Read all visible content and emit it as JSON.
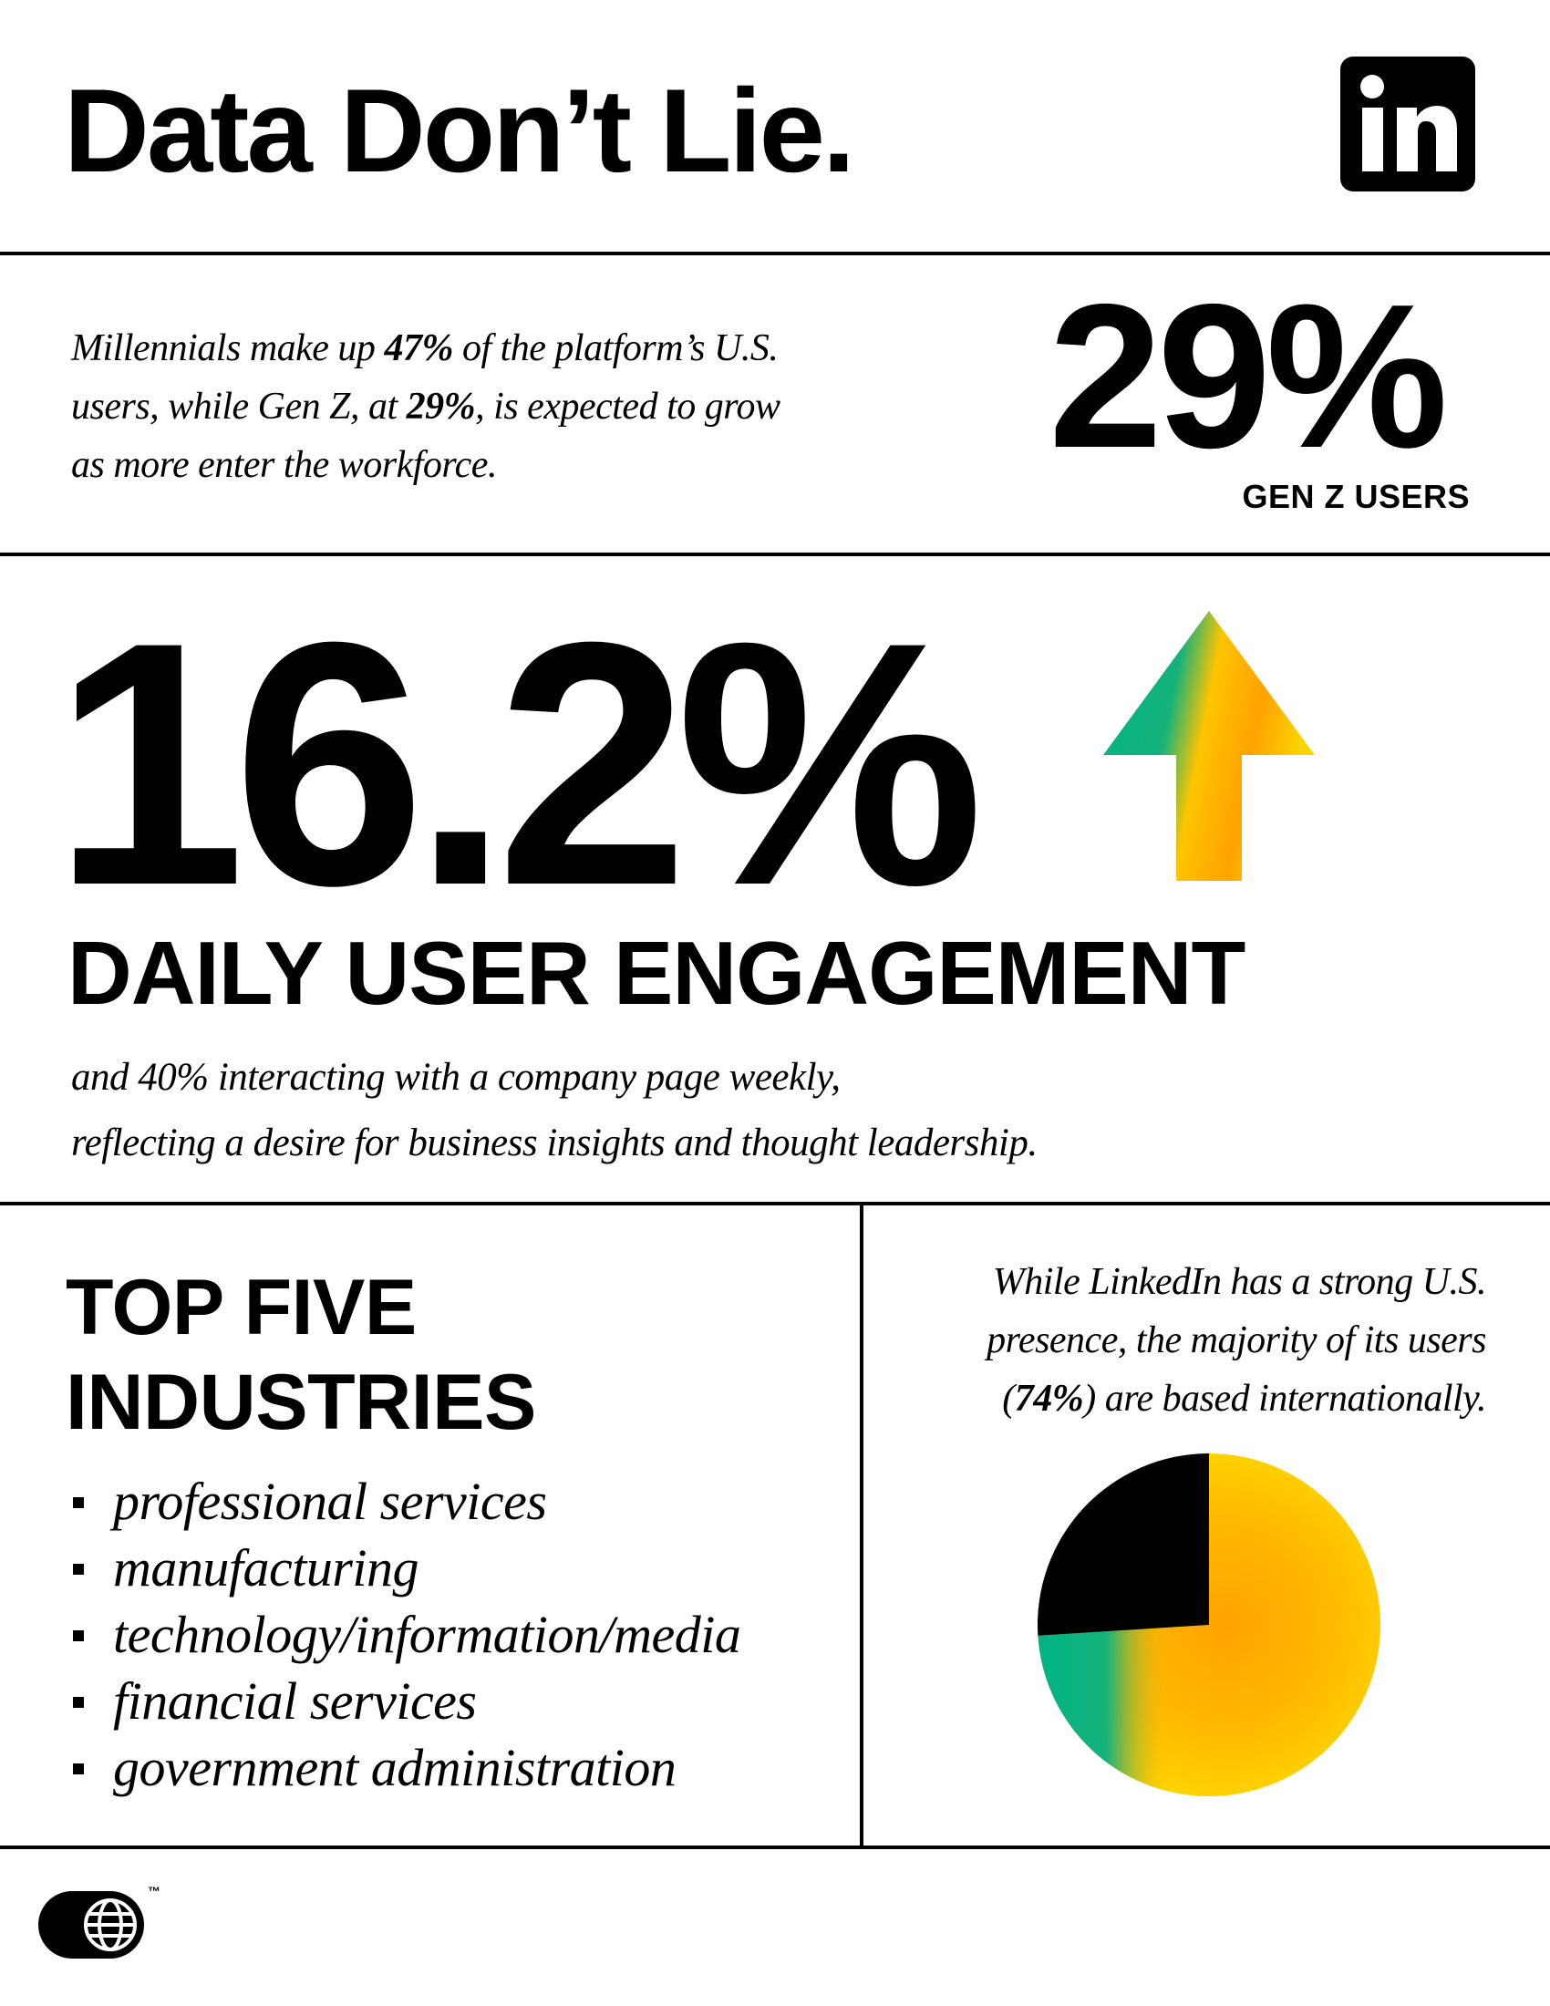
{
  "header": {
    "title": "Data Don’t Lie.",
    "logo_icon": "linkedin-logo-icon",
    "logo_text": "in"
  },
  "intro": {
    "part1": "Millennials make up ",
    "millennials_pct": "47%",
    "part2": " of the platform’s U.S. users, while Gen Z, at ",
    "genz_pct": "29%",
    "part3": ", is expected to grow as more enter the workforce.",
    "stat_value": "29%",
    "stat_label": "GEN Z USERS"
  },
  "engagement": {
    "value": "16.2%",
    "label": "DAILY USER ENGAGEMENT",
    "arrow_icon": "up-arrow-icon",
    "line1": "and 40% interacting with a company page weekly,",
    "line2": "reflecting a desire for business insights and thought leadership."
  },
  "industries": {
    "heading_line1": "TOP FIVE",
    "heading_line2": "INDUSTRIES",
    "items": [
      "professional services",
      "manufacturing",
      "technology/information/media",
      "financial services",
      "government administration"
    ]
  },
  "international": {
    "line1": "While LinkedIn has a strong U.S.",
    "line2": "presence, the majority of its users",
    "line3_open": "(",
    "pct": "74%",
    "line3_close": ") are based internationally.",
    "international_share": 0.74,
    "us_share": 0.26
  },
  "footer": {
    "badge_icon": "globe-icon",
    "trademark": "™"
  },
  "colors": {
    "black": "#000000",
    "yellow": "#FFD400",
    "orange": "#FFA200",
    "green": "#00B386"
  }
}
